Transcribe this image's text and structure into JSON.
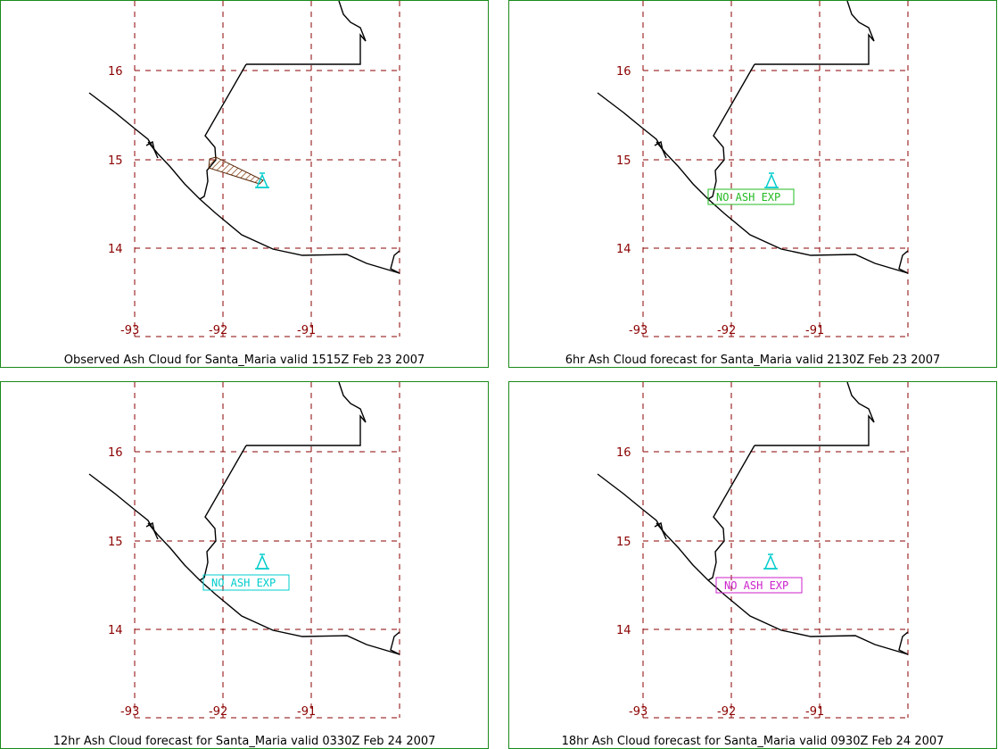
{
  "panels": [
    {
      "caption": "Observed Ash Cloud for Santa_Maria valid 1515Z Feb 23 2007",
      "status": "",
      "status_color": "",
      "ash_cloud": true
    },
    {
      "caption": "6hr Ash Cloud forecast for Santa_Maria valid 2130Z Feb 23 2007",
      "status": "NO ASH EXP",
      "status_color": "#22bb22",
      "ash_cloud": false
    },
    {
      "caption": "12hr Ash Cloud forecast for Santa_Maria valid 0330Z Feb 24 2007",
      "status": "NO ASH EXP",
      "status_color": "#00cccc",
      "ash_cloud": false
    },
    {
      "caption": "18hr Ash Cloud forecast for Santa_Maria valid 0930Z Feb 24 2007",
      "status": "NO ASH EXP",
      "status_color": "#cc22cc",
      "ash_cloud": false
    }
  ],
  "axes": {
    "lat_labels": [
      "16",
      "15",
      "14"
    ],
    "lon_labels": [
      "-93",
      "-92",
      "-91"
    ]
  },
  "colors": {
    "frame": "#1a8a1a",
    "grid": "#8b0000",
    "coast": "#000000",
    "volcano": "#00cccc",
    "ash_fill": "#8b4513"
  },
  "icons": {
    "volcano": "volcano-icon"
  }
}
